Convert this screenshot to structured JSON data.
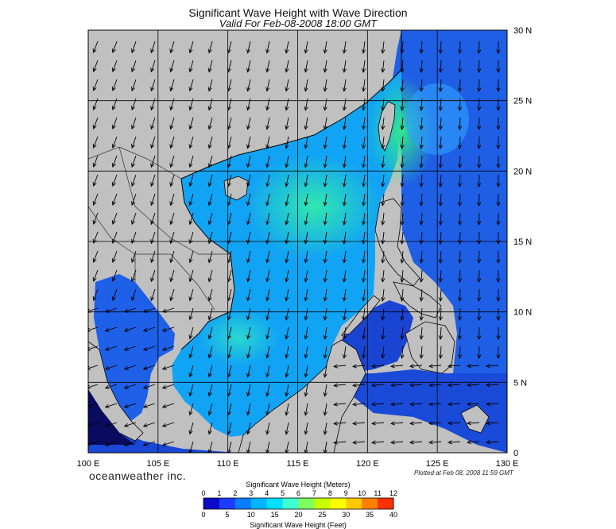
{
  "title": "Significant Wave Height with Wave Direction",
  "subtitle": "Valid For Feb-08-2008 18:00 GMT",
  "branding": "oceanweather inc.",
  "plotted_note": "Plotted at Feb 08, 2008 11:59 GMT",
  "map": {
    "lon_range": [
      100,
      130
    ],
    "lat_range": [
      0,
      30
    ],
    "lon_labels": [
      "100 E",
      "105 E",
      "110 E",
      "115 E",
      "120 E",
      "125 E",
      "130 E"
    ],
    "lat_labels": [
      "30 N",
      "25 N",
      "20 N",
      "15 N",
      "10 N",
      "5 N",
      "0"
    ],
    "land_color": "#c0c0c0",
    "grid": true
  },
  "colorbar": {
    "meters_title": "Significant Wave Height (Meters)",
    "feet_title": "Significant Wave Height (Feet)",
    "meters_ticks": [
      "0",
      "1",
      "2",
      "3",
      "4",
      "5",
      "6",
      "7",
      "8",
      "9",
      "10",
      "11",
      "12"
    ],
    "feet_ticks": [
      "0",
      "5",
      "10",
      "15",
      "20",
      "25",
      "30",
      "35",
      "40"
    ],
    "colors": [
      "#0a0ac8",
      "#1a3cff",
      "#0a7cff",
      "#00b4ff",
      "#00e0ff",
      "#40ffd0",
      "#80ff60",
      "#c8ff00",
      "#ffff00",
      "#ffc800",
      "#ff8000",
      "#ff3000"
    ]
  }
}
